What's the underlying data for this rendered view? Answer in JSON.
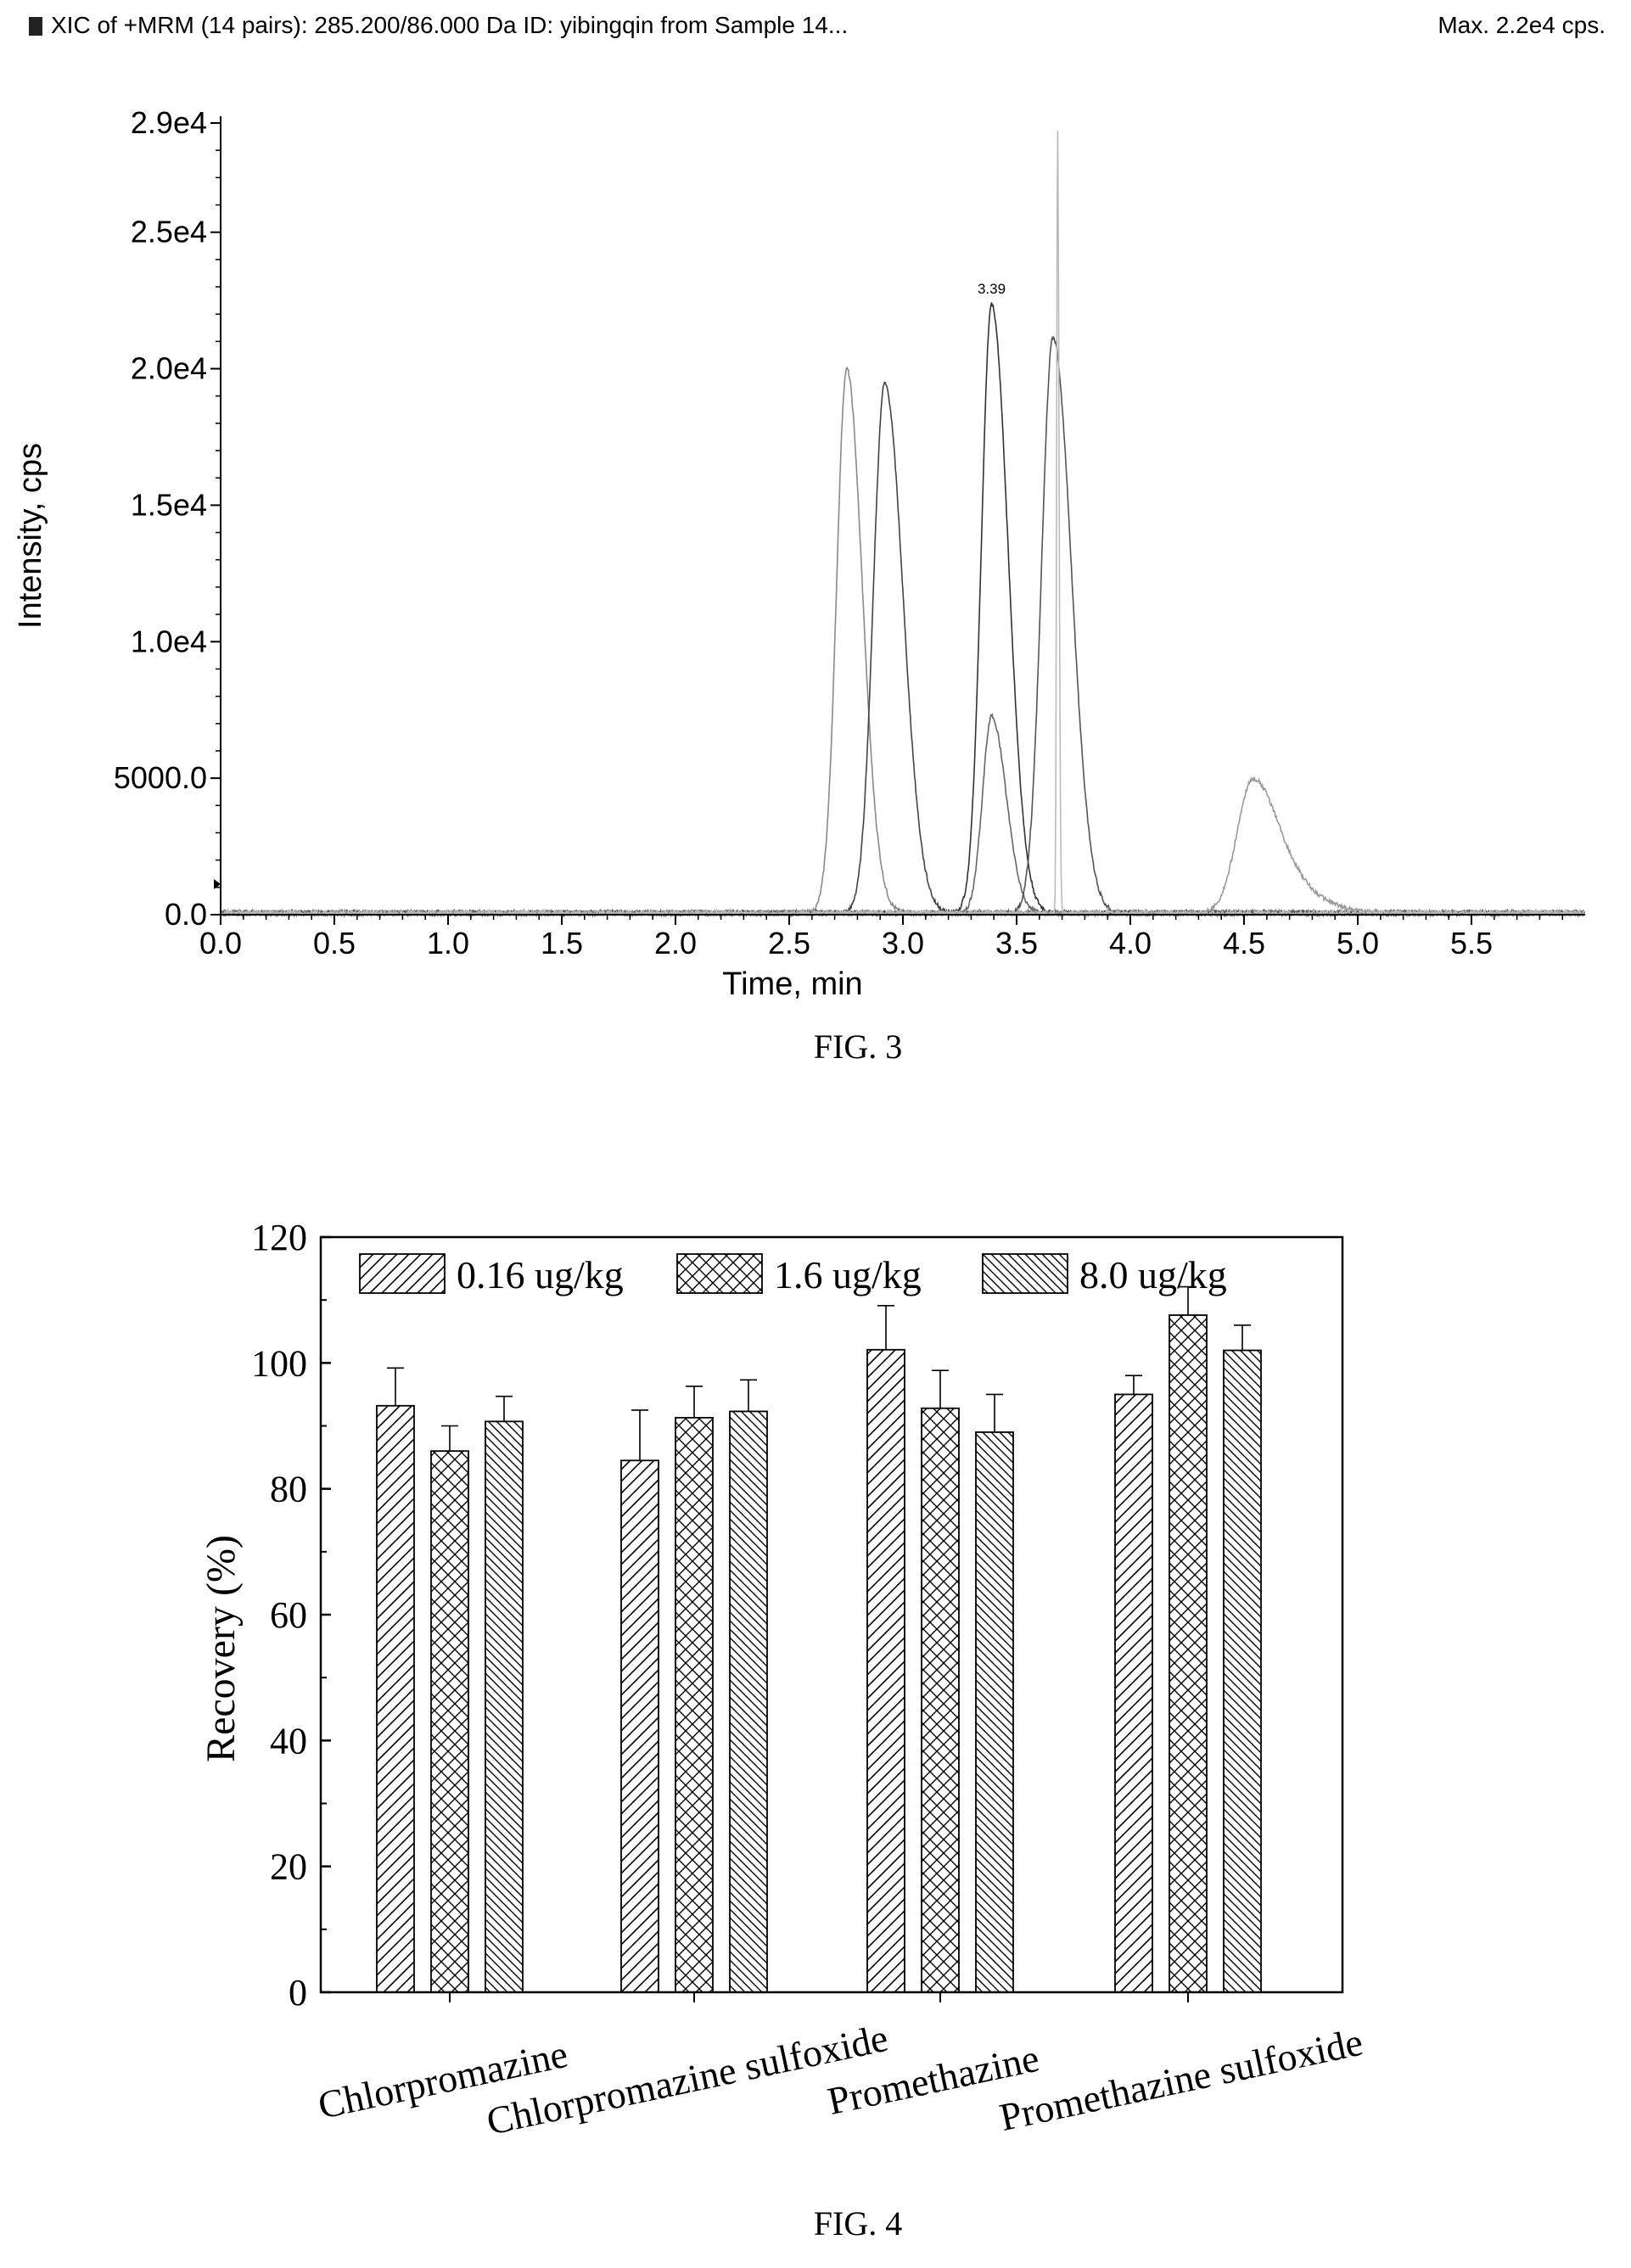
{
  "header": {
    "title": "XIC of +MRM (14 pairs): 285.200/86.000 Da ID: yibingqin from Sample 14...",
    "max": "Max. 2.2e4 cps."
  },
  "chart_data": [
    {
      "type": "line",
      "title": "",
      "xlabel": "Time, min",
      "ylabel": "Intensity, cps",
      "xlim": [
        0.0,
        6.0
      ],
      "ylim": [
        0,
        29000
      ],
      "x_ticks": [
        "0.0",
        "0.5",
        "1.0",
        "1.5",
        "2.0",
        "2.5",
        "3.0",
        "3.5",
        "4.0",
        "4.5",
        "5.0",
        "5.5"
      ],
      "y_ticks": [
        {
          "value": 0,
          "label": "0.0"
        },
        {
          "value": 5000,
          "label": "5000.0"
        },
        {
          "value": 10000,
          "label": "1.0e4"
        },
        {
          "value": 15000,
          "label": "1.5e4"
        },
        {
          "value": 20000,
          "label": "2.0e4"
        },
        {
          "value": 25000,
          "label": "2.5e4"
        },
        {
          "value": 29000,
          "label": "2.9e4"
        }
      ],
      "peak_label": {
        "x": 3.39,
        "y": 22500,
        "text": "3.39"
      },
      "series": [
        {
          "peaks": [
            {
              "x": 2.75,
              "y": 16700,
              "w": 0.045
            },
            {
              "x": 2.76,
              "y": 3300,
              "w": 0.035
            }
          ],
          "color": "#8a8a8a"
        },
        {
          "peaks": [
            {
              "x": 2.92,
              "y": 19400,
              "w": 0.05
            }
          ],
          "color": "#444444"
        },
        {
          "peaks": [
            {
              "x": 3.39,
              "y": 22300,
              "w": 0.045
            }
          ],
          "color": "#333333"
        },
        {
          "peaks": [
            {
              "x": 3.39,
              "y": 7200,
              "w": 0.04
            }
          ],
          "color": "#666666"
        },
        {
          "peaks": [
            {
              "x": 3.66,
              "y": 21100,
              "w": 0.05
            }
          ],
          "color": "#555555"
        },
        {
          "peaks": [
            {
              "x": 4.54,
              "y": 4900,
              "w": 0.07
            },
            {
              "x": 4.75,
              "y": 600,
              "w": 0.08
            }
          ],
          "color": "#9a9a9a"
        },
        {
          "peaks": [
            {
              "x": 3.68,
              "y": 29000,
              "w": 0.004
            }
          ],
          "color": "#bbbbbb"
        }
      ]
    },
    {
      "type": "bar",
      "title": "",
      "xlabel": "",
      "ylabel": "Recovery (%)",
      "ylim": [
        0,
        120
      ],
      "y_ticks": [
        0,
        20,
        40,
        60,
        80,
        100,
        120
      ],
      "categories": [
        "Chlorpromazine",
        "Chlorpromazine sulfoxide",
        "Promethazine",
        "Promethazine sulfoxide"
      ],
      "legend_position": "top",
      "series": [
        {
          "name": "0.16 ug/kg",
          "pattern": "diag-right",
          "values": [
            93.2,
            84.5,
            102.1,
            95.0
          ],
          "errors": [
            6.0,
            8.0,
            7.0,
            3.0
          ]
        },
        {
          "name": "1.6 ug/kg",
          "pattern": "cross",
          "values": [
            86.0,
            91.3,
            92.8,
            107.6
          ],
          "errors": [
            4.0,
            5.0,
            6.0,
            4.5
          ]
        },
        {
          "name": "8.0 ug/kg",
          "pattern": "diag-left",
          "values": [
            90.7,
            92.3,
            89.0,
            102.0
          ],
          "errors": [
            4.0,
            5.0,
            6.0,
            4.0
          ]
        }
      ]
    }
  ],
  "captions": {
    "fig3": "FIG. 3",
    "fig4": "FIG. 4"
  }
}
